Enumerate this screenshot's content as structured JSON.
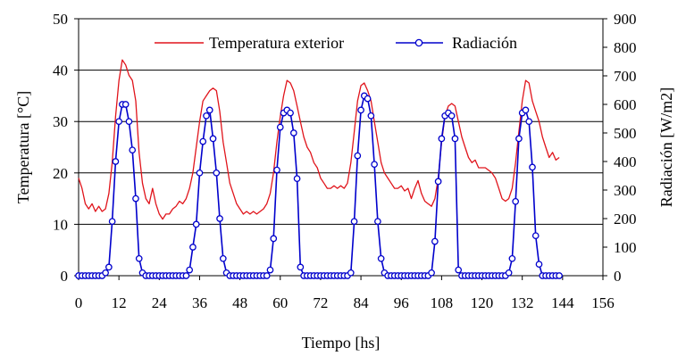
{
  "chart_data": {
    "type": "line",
    "xlabel": "Tiempo [hs]",
    "ylabel_left": "Temperatura [°C]",
    "ylabel_right": "Radiación [W/m2]",
    "xlim": [
      0,
      156
    ],
    "ylim_left": [
      0,
      50
    ],
    "ylim_right": [
      0,
      900
    ],
    "xticks": [
      0,
      12,
      24,
      36,
      48,
      60,
      72,
      84,
      96,
      108,
      120,
      132,
      144,
      156
    ],
    "yticks_left": [
      0,
      10,
      20,
      30,
      40,
      50
    ],
    "yticks_right": [
      0,
      100,
      200,
      300,
      400,
      500,
      600,
      700,
      800,
      900
    ],
    "grid": "horizontal",
    "legend_position": "top",
    "series": [
      {
        "name": "Temperatura exterior",
        "axis": "left",
        "color": "#e0141b",
        "marker": "none",
        "points": [
          [
            0,
            19
          ],
          [
            1,
            17
          ],
          [
            2,
            14
          ],
          [
            3,
            13
          ],
          [
            4,
            14
          ],
          [
            5,
            12.5
          ],
          [
            6,
            13.5
          ],
          [
            7,
            12.5
          ],
          [
            8,
            13
          ],
          [
            9,
            16
          ],
          [
            10,
            22
          ],
          [
            11,
            31
          ],
          [
            12,
            38
          ],
          [
            13,
            42
          ],
          [
            14,
            41
          ],
          [
            15,
            39
          ],
          [
            16,
            38
          ],
          [
            17,
            34
          ],
          [
            18,
            24
          ],
          [
            19,
            18
          ],
          [
            20,
            15
          ],
          [
            21,
            14
          ],
          [
            22,
            17
          ],
          [
            23,
            14
          ],
          [
            24,
            12
          ],
          [
            25,
            11
          ],
          [
            26,
            12
          ],
          [
            27,
            12
          ],
          [
            28,
            13
          ],
          [
            29,
            13.5
          ],
          [
            30,
            14.5
          ],
          [
            31,
            14
          ],
          [
            32,
            15
          ],
          [
            33,
            17
          ],
          [
            34,
            20
          ],
          [
            35,
            25
          ],
          [
            36,
            30
          ],
          [
            37,
            34
          ],
          [
            38,
            35
          ],
          [
            39,
            36
          ],
          [
            40,
            36.5
          ],
          [
            41,
            36
          ],
          [
            42,
            32
          ],
          [
            43,
            26
          ],
          [
            44,
            22
          ],
          [
            45,
            18
          ],
          [
            46,
            16
          ],
          [
            47,
            14
          ],
          [
            48,
            13
          ],
          [
            49,
            12
          ],
          [
            50,
            12.5
          ],
          [
            51,
            12
          ],
          [
            52,
            12.5
          ],
          [
            53,
            12
          ],
          [
            54,
            12.5
          ],
          [
            55,
            13
          ],
          [
            56,
            14
          ],
          [
            57,
            16
          ],
          [
            58,
            20
          ],
          [
            59,
            26
          ],
          [
            60,
            31
          ],
          [
            61,
            35
          ],
          [
            62,
            38
          ],
          [
            63,
            37.5
          ],
          [
            64,
            36
          ],
          [
            65,
            33
          ],
          [
            66,
            30
          ],
          [
            67,
            27
          ],
          [
            68,
            25
          ],
          [
            69,
            24
          ],
          [
            70,
            22
          ],
          [
            71,
            21
          ],
          [
            72,
            19
          ],
          [
            73,
            18
          ],
          [
            74,
            17
          ],
          [
            75,
            17
          ],
          [
            76,
            17.5
          ],
          [
            77,
            17
          ],
          [
            78,
            17.5
          ],
          [
            79,
            17
          ],
          [
            80,
            18
          ],
          [
            81,
            22
          ],
          [
            82,
            28
          ],
          [
            83,
            34
          ],
          [
            84,
            37
          ],
          [
            85,
            37.5
          ],
          [
            86,
            36
          ],
          [
            87,
            34
          ],
          [
            88,
            30
          ],
          [
            89,
            26
          ],
          [
            90,
            22
          ],
          [
            91,
            20
          ],
          [
            92,
            19
          ],
          [
            93,
            18
          ],
          [
            94,
            17
          ],
          [
            95,
            17
          ],
          [
            96,
            17.5
          ],
          [
            97,
            16.5
          ],
          [
            98,
            17
          ],
          [
            99,
            15
          ],
          [
            100,
            17
          ],
          [
            101,
            18.5
          ],
          [
            102,
            16
          ],
          [
            103,
            14.5
          ],
          [
            104,
            14
          ],
          [
            105,
            13.5
          ],
          [
            106,
            15
          ],
          [
            107,
            19
          ],
          [
            108,
            26
          ],
          [
            109,
            31
          ],
          [
            110,
            33
          ],
          [
            111,
            33.5
          ],
          [
            112,
            33
          ],
          [
            113,
            30
          ],
          [
            114,
            27
          ],
          [
            115,
            25
          ],
          [
            116,
            23
          ],
          [
            117,
            22
          ],
          [
            118,
            22.5
          ],
          [
            119,
            21
          ],
          [
            120,
            21
          ],
          [
            121,
            21
          ],
          [
            122,
            20.5
          ],
          [
            123,
            20
          ],
          [
            124,
            19
          ],
          [
            125,
            17
          ],
          [
            126,
            15
          ],
          [
            127,
            14.5
          ],
          [
            128,
            15
          ],
          [
            129,
            17
          ],
          [
            130,
            22
          ],
          [
            131,
            28
          ],
          [
            132,
            34
          ],
          [
            133,
            38
          ],
          [
            134,
            37.5
          ],
          [
            135,
            34
          ],
          [
            136,
            32
          ],
          [
            137,
            30
          ],
          [
            138,
            27
          ],
          [
            139,
            25
          ],
          [
            140,
            23
          ],
          [
            141,
            24
          ],
          [
            142,
            22.5
          ],
          [
            143,
            23
          ]
        ]
      },
      {
        "name": "Radiación",
        "axis": "right",
        "color": "#0000cc",
        "marker": "circle",
        "points": [
          [
            0,
            0
          ],
          [
            1,
            0
          ],
          [
            2,
            0
          ],
          [
            3,
            0
          ],
          [
            4,
            0
          ],
          [
            5,
            0
          ],
          [
            6,
            0
          ],
          [
            7,
            0
          ],
          [
            8,
            10
          ],
          [
            9,
            30
          ],
          [
            10,
            190
          ],
          [
            11,
            400
          ],
          [
            12,
            540
          ],
          [
            13,
            600
          ],
          [
            14,
            600
          ],
          [
            15,
            540
          ],
          [
            16,
            440
          ],
          [
            17,
            270
          ],
          [
            18,
            60
          ],
          [
            19,
            10
          ],
          [
            20,
            0
          ],
          [
            21,
            0
          ],
          [
            22,
            0
          ],
          [
            23,
            0
          ],
          [
            24,
            0
          ],
          [
            25,
            0
          ],
          [
            26,
            0
          ],
          [
            27,
            0
          ],
          [
            28,
            0
          ],
          [
            29,
            0
          ],
          [
            30,
            0
          ],
          [
            31,
            0
          ],
          [
            32,
            0
          ],
          [
            33,
            20
          ],
          [
            34,
            100
          ],
          [
            35,
            180
          ],
          [
            36,
            360
          ],
          [
            37,
            470
          ],
          [
            38,
            560
          ],
          [
            39,
            580
          ],
          [
            40,
            480
          ],
          [
            41,
            360
          ],
          [
            42,
            200
          ],
          [
            43,
            60
          ],
          [
            44,
            10
          ],
          [
            45,
            0
          ],
          [
            46,
            0
          ],
          [
            47,
            0
          ],
          [
            48,
            0
          ],
          [
            49,
            0
          ],
          [
            50,
            0
          ],
          [
            51,
            0
          ],
          [
            52,
            0
          ],
          [
            53,
            0
          ],
          [
            54,
            0
          ],
          [
            55,
            0
          ],
          [
            56,
            0
          ],
          [
            57,
            20
          ],
          [
            58,
            130
          ],
          [
            59,
            370
          ],
          [
            60,
            520
          ],
          [
            61,
            570
          ],
          [
            62,
            580
          ],
          [
            63,
            570
          ],
          [
            64,
            500
          ],
          [
            65,
            340
          ],
          [
            66,
            30
          ],
          [
            67,
            0
          ],
          [
            68,
            0
          ],
          [
            69,
            0
          ],
          [
            70,
            0
          ],
          [
            71,
            0
          ],
          [
            72,
            0
          ],
          [
            73,
            0
          ],
          [
            74,
            0
          ],
          [
            75,
            0
          ],
          [
            76,
            0
          ],
          [
            77,
            0
          ],
          [
            78,
            0
          ],
          [
            79,
            0
          ],
          [
            80,
            0
          ],
          [
            81,
            10
          ],
          [
            82,
            190
          ],
          [
            83,
            420
          ],
          [
            84,
            580
          ],
          [
            85,
            630
          ],
          [
            86,
            620
          ],
          [
            87,
            560
          ],
          [
            88,
            390
          ],
          [
            89,
            190
          ],
          [
            90,
            60
          ],
          [
            91,
            10
          ],
          [
            92,
            0
          ],
          [
            93,
            0
          ],
          [
            94,
            0
          ],
          [
            95,
            0
          ],
          [
            96,
            0
          ],
          [
            97,
            0
          ],
          [
            98,
            0
          ],
          [
            99,
            0
          ],
          [
            100,
            0
          ],
          [
            101,
            0
          ],
          [
            102,
            0
          ],
          [
            103,
            0
          ],
          [
            104,
            0
          ],
          [
            105,
            10
          ],
          [
            106,
            120
          ],
          [
            107,
            330
          ],
          [
            108,
            480
          ],
          [
            109,
            560
          ],
          [
            110,
            570
          ],
          [
            111,
            560
          ],
          [
            112,
            480
          ],
          [
            113,
            20
          ],
          [
            114,
            0
          ],
          [
            115,
            0
          ],
          [
            116,
            0
          ],
          [
            117,
            0
          ],
          [
            118,
            0
          ],
          [
            119,
            0
          ],
          [
            120,
            0
          ],
          [
            121,
            0
          ],
          [
            122,
            0
          ],
          [
            123,
            0
          ],
          [
            124,
            0
          ],
          [
            125,
            0
          ],
          [
            126,
            0
          ],
          [
            127,
            0
          ],
          [
            128,
            10
          ],
          [
            129,
            60
          ],
          [
            130,
            260
          ],
          [
            131,
            480
          ],
          [
            132,
            570
          ],
          [
            133,
            580
          ],
          [
            134,
            540
          ],
          [
            135,
            380
          ],
          [
            136,
            140
          ],
          [
            137,
            40
          ],
          [
            138,
            0
          ],
          [
            139,
            0
          ],
          [
            140,
            0
          ],
          [
            141,
            0
          ],
          [
            142,
            0
          ],
          [
            143,
            0
          ]
        ]
      }
    ]
  }
}
